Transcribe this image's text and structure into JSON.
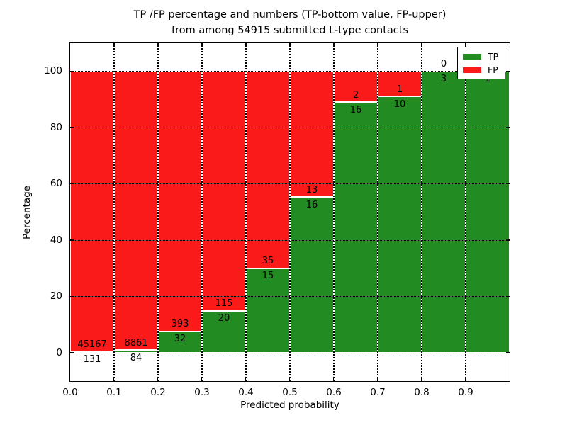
{
  "title": {
    "line1": "TP /FP percentage and numbers (TP-bottom value, FP-upper)",
    "line2": "from among 54915 submitted L-type contacts"
  },
  "chart_data": {
    "type": "bar",
    "stacked": true,
    "unit": "percent",
    "title": "TP /FP percentage and numbers (TP-bottom value, FP-upper)\nfrom among 54915 submitted L-type contacts",
    "xlabel": "Predicted probability",
    "ylabel": "Percentage",
    "xlim": [
      0.0,
      1.0
    ],
    "ylim": [
      -10,
      110
    ],
    "x_ticks": [
      0.0,
      0.1,
      0.2,
      0.3,
      0.4,
      0.5,
      0.6,
      0.7,
      0.8,
      0.9
    ],
    "x_tick_labels": [
      "0.0",
      "0.1",
      "0.2",
      "0.3",
      "0.4",
      "0.5",
      "0.6",
      "0.7",
      "0.8",
      "0.9"
    ],
    "y_ticks": [
      0,
      20,
      40,
      60,
      80,
      100
    ],
    "y_tick_labels": [
      "0",
      "20",
      "40",
      "60",
      "80",
      "100"
    ],
    "grid": true,
    "total_contacts": 54915,
    "series": [
      {
        "name": "TP",
        "color": "#228b22"
      },
      {
        "name": "FP",
        "color": "#fb1a1a"
      }
    ],
    "legend": {
      "position": "upper right",
      "entries": [
        {
          "label": "TP",
          "color": "#228b22"
        },
        {
          "label": "FP",
          "color": "#fb1a1a"
        }
      ]
    },
    "bins": [
      {
        "x_start": 0.0,
        "x_end": 0.1,
        "tp": 131,
        "fp": 45167,
        "tp_pct": 0.29,
        "fp_pct": 99.71,
        "tp_label": "131",
        "fp_label": "45167"
      },
      {
        "x_start": 0.1,
        "x_end": 0.2,
        "tp": 84,
        "fp": 8861,
        "tp_pct": 0.94,
        "fp_pct": 99.06,
        "tp_label": "84",
        "fp_label": "8861"
      },
      {
        "x_start": 0.2,
        "x_end": 0.3,
        "tp": 32,
        "fp": 393,
        "tp_pct": 7.53,
        "fp_pct": 92.47,
        "tp_label": "32",
        "fp_label": "393"
      },
      {
        "x_start": 0.3,
        "x_end": 0.4,
        "tp": 20,
        "fp": 115,
        "tp_pct": 14.81,
        "fp_pct": 85.19,
        "tp_label": "20",
        "fp_label": "115"
      },
      {
        "x_start": 0.4,
        "x_end": 0.5,
        "tp": 15,
        "fp": 35,
        "tp_pct": 30.0,
        "fp_pct": 70.0,
        "tp_label": "15",
        "fp_label": "35"
      },
      {
        "x_start": 0.5,
        "x_end": 0.6,
        "tp": 16,
        "fp": 13,
        "tp_pct": 55.17,
        "fp_pct": 44.83,
        "tp_label": "16",
        "fp_label": "13"
      },
      {
        "x_start": 0.6,
        "x_end": 0.7,
        "tp": 16,
        "fp": 2,
        "tp_pct": 88.89,
        "fp_pct": 11.11,
        "tp_label": "16",
        "fp_label": "2"
      },
      {
        "x_start": 0.7,
        "x_end": 0.8,
        "tp": 10,
        "fp": 1,
        "tp_pct": 90.91,
        "fp_pct": 9.09,
        "tp_label": "10",
        "fp_label": "1"
      },
      {
        "x_start": 0.8,
        "x_end": 0.9,
        "tp": 3,
        "fp": 0,
        "tp_pct": 100.0,
        "fp_pct": 0.0,
        "tp_label": "3",
        "fp_label": "0"
      },
      {
        "x_start": 0.9,
        "x_end": 1.0,
        "tp": 1,
        "fp": 0,
        "tp_pct": 100.0,
        "fp_pct": 0.0,
        "tp_label": "1",
        "fp_label": null
      }
    ]
  }
}
